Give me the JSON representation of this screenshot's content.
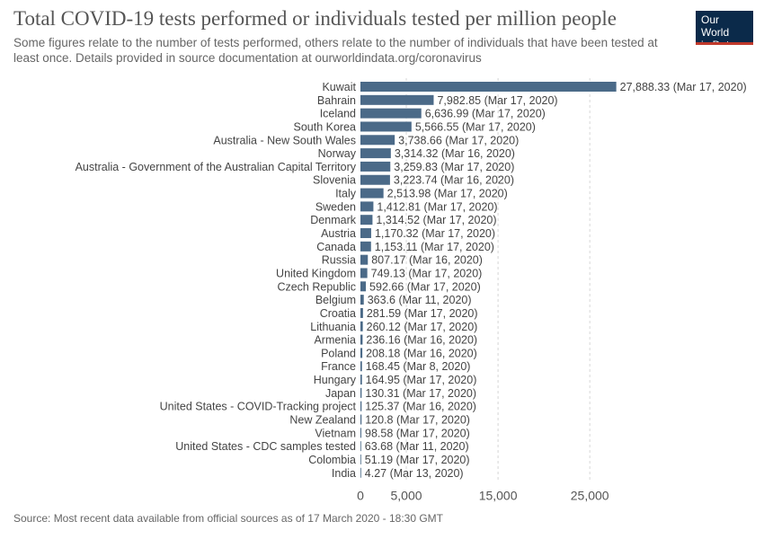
{
  "header": {
    "title": "Total COVID-19 tests performed or individuals tested per million people",
    "subtitle": "Some figures relate to the number of tests performed, others relate to the number of individuals that have been tested at least once. Details provided in source documentation at ourworldindata.org/coronavirus"
  },
  "logo": {
    "line1": "Our World",
    "line2": "in Data",
    "bg_color": "#0b2a4a",
    "accent_color": "#c0392b"
  },
  "footer": {
    "source": "Source: Most recent data available from official sources as of 17 March 2020 - 18:30 GMT"
  },
  "chart_data": {
    "type": "bar",
    "orientation": "horizontal",
    "bar_color": "#4b6a88",
    "grid": true,
    "xlim": [
      0,
      29000
    ],
    "xticks": [
      0,
      5000,
      15000,
      25000
    ],
    "xtick_labels": [
      "0",
      "5,000",
      "15,000",
      "25,000"
    ],
    "categories": [
      "Kuwait",
      "Bahrain",
      "Iceland",
      "South Korea",
      "Australia - New South Wales",
      "Norway",
      "Australia - Government of the Australian Capital Territory",
      "Slovenia",
      "Italy",
      "Sweden",
      "Denmark",
      "Austria",
      "Canada",
      "Russia",
      "United Kingdom",
      "Czech Republic",
      "Belgium",
      "Croatia",
      "Lithuania",
      "Armenia",
      "Poland",
      "France",
      "Hungary",
      "Japan",
      "United States - COVID-Tracking project",
      "New Zealand",
      "Vietnam",
      "United States - CDC samples tested",
      "Colombia",
      "India"
    ],
    "values": [
      27888.33,
      7982.85,
      6636.99,
      5566.55,
      3738.66,
      3314.32,
      3259.83,
      3223.74,
      2513.98,
      1412.81,
      1314.52,
      1170.32,
      1153.11,
      807.17,
      749.13,
      592.66,
      363.6,
      281.59,
      260.12,
      236.16,
      208.18,
      168.45,
      164.95,
      130.31,
      125.37,
      120.8,
      98.58,
      63.68,
      51.19,
      4.27
    ],
    "value_labels": [
      "27,888.33 (Mar 17, 2020)",
      "7,982.85 (Mar 17, 2020)",
      "6,636.99 (Mar 17, 2020)",
      "5,566.55 (Mar 17, 2020)",
      "3,738.66 (Mar 17, 2020)",
      "3,314.32 (Mar 16, 2020)",
      "3,259.83 (Mar 17, 2020)",
      "3,223.74 (Mar 16, 2020)",
      "2,513.98 (Mar 17, 2020)",
      "1,412.81 (Mar 17, 2020)",
      "1,314.52 (Mar 17, 2020)",
      "1,170.32 (Mar 17, 2020)",
      "1,153.11 (Mar 17, 2020)",
      "807.17 (Mar 16, 2020)",
      "749.13 (Mar 17, 2020)",
      "592.66 (Mar 17, 2020)",
      "363.6 (Mar 11, 2020)",
      "281.59 (Mar 17, 2020)",
      "260.12 (Mar 17, 2020)",
      "236.16 (Mar 16, 2020)",
      "208.18 (Mar 16, 2020)",
      "168.45 (Mar 8, 2020)",
      "164.95 (Mar 17, 2020)",
      "130.31 (Mar 17, 2020)",
      "125.37 (Mar 16, 2020)",
      "120.8 (Mar 17, 2020)",
      "98.58 (Mar 17, 2020)",
      "63.68 (Mar 11, 2020)",
      "51.19 (Mar 17, 2020)",
      "4.27 (Mar 13, 2020)"
    ]
  }
}
